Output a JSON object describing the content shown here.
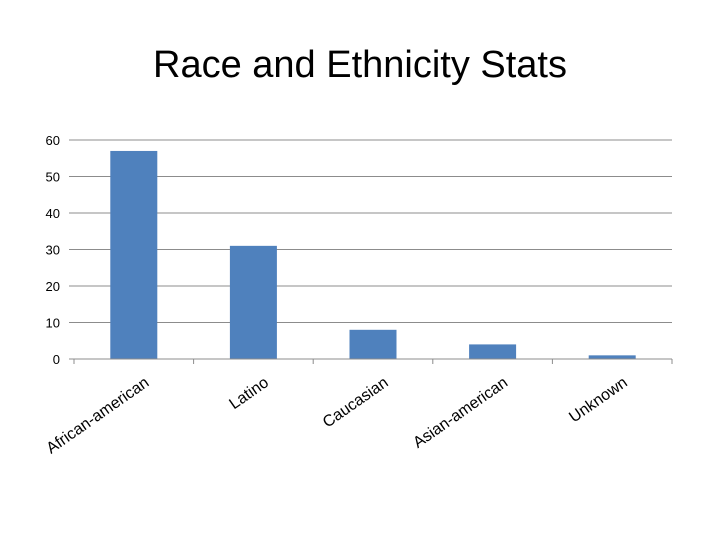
{
  "chart_data": {
    "type": "bar",
    "title": "Race and Ethnicity Stats",
    "categories": [
      "African-american",
      "Latino",
      "Caucasian",
      "Asian-american",
      "Unknown"
    ],
    "values": [
      57,
      31,
      8,
      4,
      1
    ],
    "ylim": [
      0,
      60
    ],
    "yticks": [
      0,
      10,
      20,
      30,
      40,
      50,
      60
    ],
    "grid": true,
    "legend": "none",
    "bar_color": "#4F81BD",
    "xlabel": "",
    "ylabel": ""
  }
}
